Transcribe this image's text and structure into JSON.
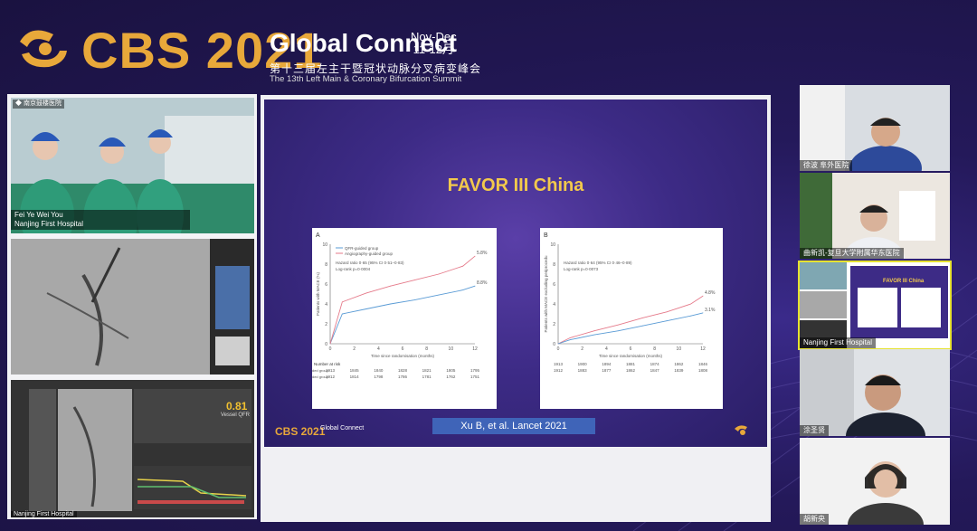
{
  "header": {
    "brand": "CBS 2021",
    "event": "Global Connect",
    "dates_top": "Nov-Dec",
    "dates_bottom": "11-12月",
    "cn_title": "第十三届左主干暨冠状动脉分叉病变峰会",
    "en_title": "The 13th Left Main & Coronary Bifurcation Summit"
  },
  "left_panels": {
    "video1": {
      "tag": "◆ 南京鼓楼医院",
      "names": "Fei Ye  Wei You",
      "hospital": "Nanjing First Hospital"
    },
    "video3": {
      "ffr_value": "0.81",
      "ffr_label": "Vessel QFR",
      "footer": "Nanjing First Hospital"
    }
  },
  "slide": {
    "title": "FAVOR III China",
    "reference": "Xu B, et al. Lancet  2021",
    "logo_text": "CBS 2021",
    "logo_sub": "Global Connect"
  },
  "chart_data": [
    {
      "type": "line",
      "panel": "A",
      "xlabel": "Time since randomisation (months)",
      "ylabel": "Patients with MACE (%)",
      "ylim": [
        0,
        10
      ],
      "xlim": [
        0,
        12
      ],
      "xticks": [
        "0",
        "2",
        "4",
        "6",
        "8",
        "10",
        "12"
      ],
      "yticks": [
        "0",
        "2",
        "4",
        "6",
        "8",
        "10"
      ],
      "annotation": [
        "Hazard ratio 0·65 (95% CI 0·51–0·83)",
        "Log-rank p=0·0004"
      ],
      "legend": [
        "QFR-guided group",
        "Angiography-guided group"
      ],
      "series": [
        {
          "name": "QFR-guided group",
          "color": "#5a9bd5",
          "x": [
            0,
            1,
            3,
            5,
            7,
            9,
            11,
            12
          ],
          "y": [
            0,
            3.0,
            3.5,
            4.0,
            4.4,
            4.9,
            5.4,
            5.8
          ]
        },
        {
          "name": "Angiography-guided group",
          "color": "#e57a8a",
          "x": [
            0,
            1,
            3,
            5,
            7,
            9,
            11,
            12
          ],
          "y": [
            0,
            4.2,
            5.1,
            5.8,
            6.4,
            7.0,
            7.8,
            8.8
          ]
        }
      ],
      "end_labels": [
        "8.8%",
        "5.8%"
      ],
      "risk_title": "Number at risk",
      "risk_rows": [
        {
          "label": "QFR-guided group",
          "values": [
            "1913",
            "1845",
            "1840",
            "1828",
            "1821",
            "1805",
            "1795"
          ]
        },
        {
          "label": "Angiography-guided group",
          "values": [
            "1912",
            "1814",
            "1798",
            "1786",
            "1781",
            "1762",
            "1751"
          ]
        }
      ]
    },
    {
      "type": "line",
      "panel": "B",
      "xlabel": "Time since randomisation (months)",
      "ylabel": "Patients with MACE excluding periprocedural myocardial infarction (%)",
      "ylim": [
        0,
        10
      ],
      "xlim": [
        0,
        12
      ],
      "xticks": [
        "0",
        "2",
        "4",
        "6",
        "8",
        "10",
        "12"
      ],
      "yticks": [
        "0",
        "2",
        "4",
        "6",
        "8",
        "10"
      ],
      "annotation": [
        "Hazard ratio 0·64 (95% CI 0·46–0·89)",
        "Log-rank p=0·0073"
      ],
      "series": [
        {
          "name": "",
          "color": "#e57a8a",
          "x": [
            0,
            1,
            3,
            5,
            7,
            9,
            11,
            12
          ],
          "y": [
            0,
            0.6,
            1.3,
            1.9,
            2.6,
            3.2,
            4.0,
            4.8
          ]
        },
        {
          "name": "",
          "color": "#5a9bd5",
          "x": [
            0,
            1,
            3,
            5,
            7,
            9,
            11,
            12
          ],
          "y": [
            0,
            0.4,
            0.9,
            1.3,
            1.8,
            2.3,
            2.8,
            3.1
          ]
        }
      ],
      "end_labels": [
        "4.8%",
        "3.1%"
      ],
      "risk_rows": [
        {
          "label": "",
          "values": [
            "1913",
            "1900",
            "1894",
            "1881",
            "1874",
            "1862",
            "1846"
          ]
        },
        {
          "label": "",
          "values": [
            "1912",
            "1883",
            "1877",
            "1862",
            "1847",
            "1839",
            "1808"
          ]
        }
      ]
    }
  ],
  "participants": [
    {
      "name": "徐波 阜外医院"
    },
    {
      "name": "曲新凯-复旦大学附属华东医院"
    },
    {
      "name": "Nanjing First Hospital",
      "slide_title": "FAVOR III China"
    },
    {
      "name": "涂圣贤"
    },
    {
      "name": "胡新央"
    }
  ]
}
